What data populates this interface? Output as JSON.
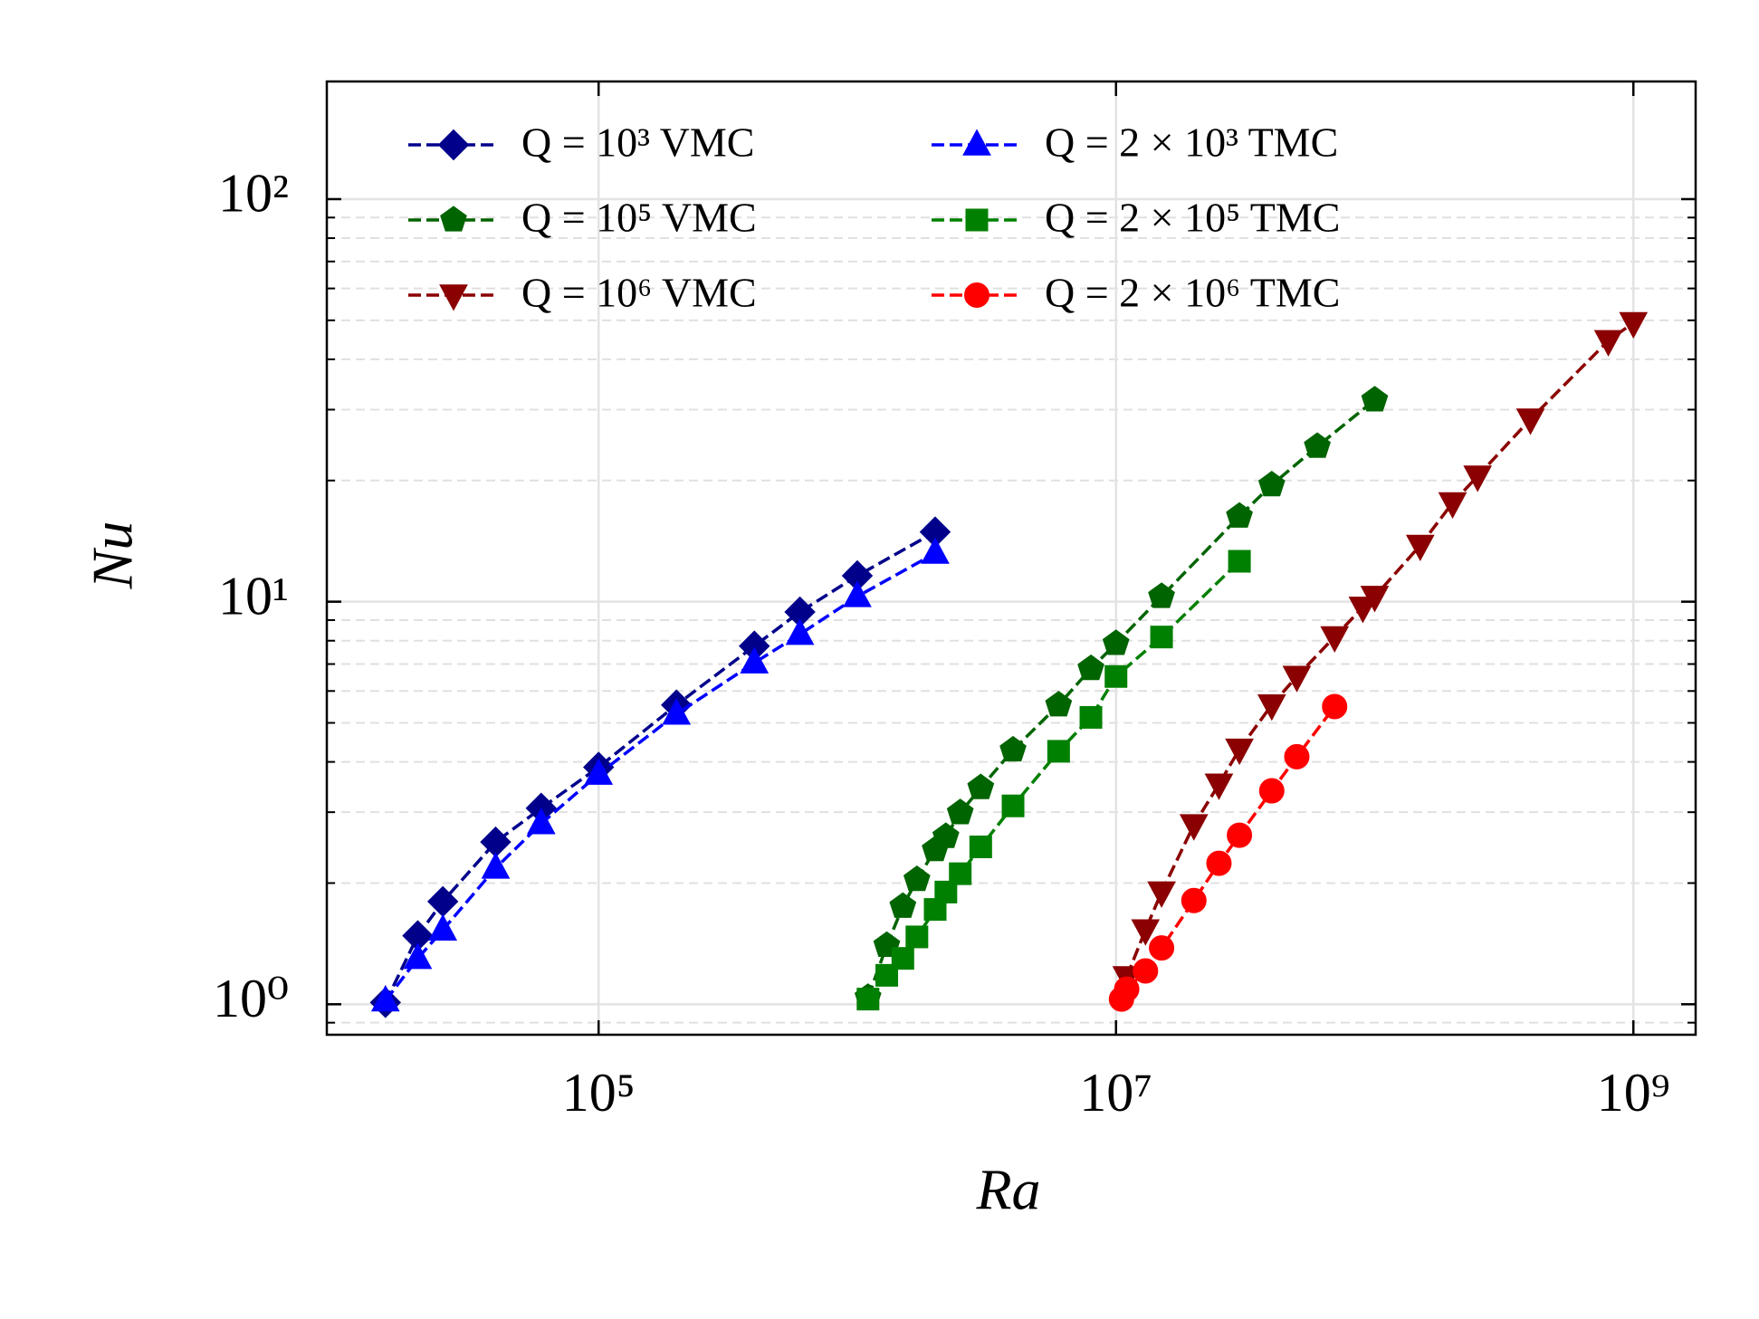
{
  "chart_data": {
    "type": "line",
    "xlabel": "Ra",
    "ylabel": "Nu",
    "xscale": "log",
    "yscale": "log",
    "xlim": [
      8900,
      1740000000
    ],
    "ylim": [
      0.84,
      196
    ],
    "xticks": [
      {
        "value": 100000,
        "label": "10⁵"
      },
      {
        "value": 10000000,
        "label": "10⁷"
      },
      {
        "value": 1000000000,
        "label": "10⁹"
      }
    ],
    "yticks": [
      {
        "value": 1,
        "label": "10⁰"
      },
      {
        "value": 10,
        "label": "10¹"
      },
      {
        "value": 100,
        "label": "10²"
      }
    ],
    "yminorticks": [
      0.9,
      2,
      3,
      4,
      5,
      6,
      7,
      8,
      9,
      20,
      30,
      40,
      50,
      60,
      70,
      80,
      90
    ],
    "grid": true,
    "legend_loc": "upper left",
    "legend_ncol": 2,
    "series": [
      {
        "name": "Q = 10³ VMC",
        "color": "#00008b",
        "marker": "diamond",
        "x": [
          15000,
          20000,
          25000,
          40000,
          60000,
          100000,
          200000,
          400000,
          600000,
          1000000,
          2000000
        ],
        "values": [
          1.01,
          1.48,
          1.8,
          2.53,
          3.07,
          3.88,
          5.54,
          7.76,
          9.43,
          11.6,
          14.9
        ]
      },
      {
        "name": "Q = 10⁵ VMC",
        "color": "#006400",
        "marker": "pentagon",
        "x": [
          1100000,
          1300000,
          1500000,
          1700000,
          2000000,
          2200000,
          2500000,
          3000000,
          4000000,
          6000000,
          8000000,
          10000000,
          15000000,
          30000000,
          40000000,
          60000000,
          100000000
        ],
        "values": [
          1.04,
          1.4,
          1.75,
          2.04,
          2.42,
          2.61,
          2.99,
          3.45,
          4.28,
          5.54,
          6.82,
          7.87,
          10.3,
          16.3,
          19.5,
          24.3,
          31.7
        ]
      },
      {
        "name": "Q = 10⁶ VMC",
        "color": "#8b0000",
        "marker": "triangle-down",
        "x": [
          11000000,
          13000000,
          15000000,
          20000000,
          25000000,
          30000000,
          40000000,
          50000000,
          70000000,
          90000000,
          100000000,
          150000000,
          200000000,
          250000000,
          400000000,
          800000000,
          1000000000
        ],
        "values": [
          1.17,
          1.53,
          1.9,
          2.79,
          3.52,
          4.3,
          5.54,
          6.52,
          8.18,
          9.68,
          10.3,
          13.8,
          17.6,
          20.5,
          28.4,
          44.5,
          49.3
        ]
      },
      {
        "name": "Q = 2 × 10³ TMC",
        "color": "#0000ff",
        "marker": "triangle-up",
        "x": [
          15000,
          20000,
          25000,
          40000,
          60000,
          100000,
          200000,
          400000,
          600000,
          1000000,
          2000000
        ],
        "values": [
          1.02,
          1.3,
          1.53,
          2.18,
          2.81,
          3.73,
          5.26,
          7.05,
          8.3,
          10.3,
          13.2
        ]
      },
      {
        "name": "Q = 2 × 10⁵ TMC",
        "color": "#008000",
        "marker": "square",
        "x": [
          1100000,
          1300000,
          1500000,
          1700000,
          2000000,
          2200000,
          2500000,
          3000000,
          4000000,
          6000000,
          8000000,
          10000000,
          15000000,
          30000000
        ],
        "values": [
          1.03,
          1.18,
          1.3,
          1.47,
          1.72,
          1.9,
          2.11,
          2.46,
          3.11,
          4.25,
          5.16,
          6.52,
          8.17,
          12.6
        ]
      },
      {
        "name": "Q = 2 × 10⁶ TMC",
        "color": "#ff0000",
        "marker": "circle",
        "x": [
          10500000,
          11000000,
          13000000,
          15000000,
          20000000,
          25000000,
          30000000,
          40000000,
          50000000,
          70000000
        ],
        "values": [
          1.03,
          1.09,
          1.21,
          1.38,
          1.81,
          2.24,
          2.63,
          3.39,
          4.12,
          5.49
        ]
      }
    ]
  }
}
